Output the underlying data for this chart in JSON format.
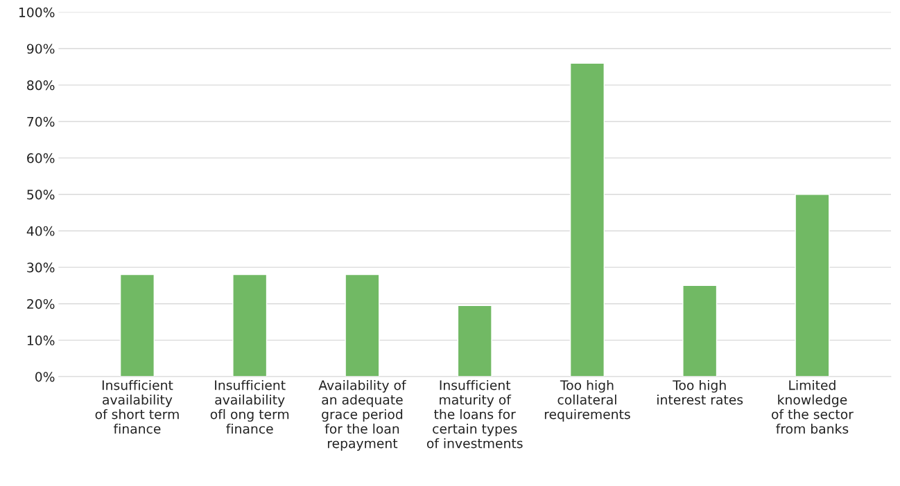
{
  "chart_data": {
    "type": "bar",
    "categories": [
      "Insufficient\navailability\nof short term\nfinance",
      "Insufficient\navailability\nofl ong term\nfinance",
      "Availability of\nan adequate\ngrace period\nfor the loan\nrepayment",
      "Insufficient\nmaturity of\nthe loans for\ncertain types\nof investments",
      "Too high\ncollateral\nrequirements",
      "Too high\ninterest rates",
      "Limited\nknowledge\nof the sector\nfrom banks"
    ],
    "values": [
      28,
      28,
      28,
      19.5,
      86,
      25,
      50
    ],
    "color": "#71b964",
    "ylim": [
      0,
      100
    ],
    "yticks": [
      {
        "value": 0,
        "label": "0%"
      },
      {
        "value": 10,
        "label": "10%"
      },
      {
        "value": 20,
        "label": "20%"
      },
      {
        "value": 30,
        "label": "30%"
      },
      {
        "value": 40,
        "label": "40%"
      },
      {
        "value": 50,
        "label": "50%"
      },
      {
        "value": 60,
        "label": "60%"
      },
      {
        "value": 70,
        "label": "70%"
      },
      {
        "value": 80,
        "label": "80%"
      },
      {
        "value": 90,
        "label": "90%"
      },
      {
        "value": 100,
        "label": "100%"
      }
    ],
    "grid": "y",
    "legend": false
  }
}
